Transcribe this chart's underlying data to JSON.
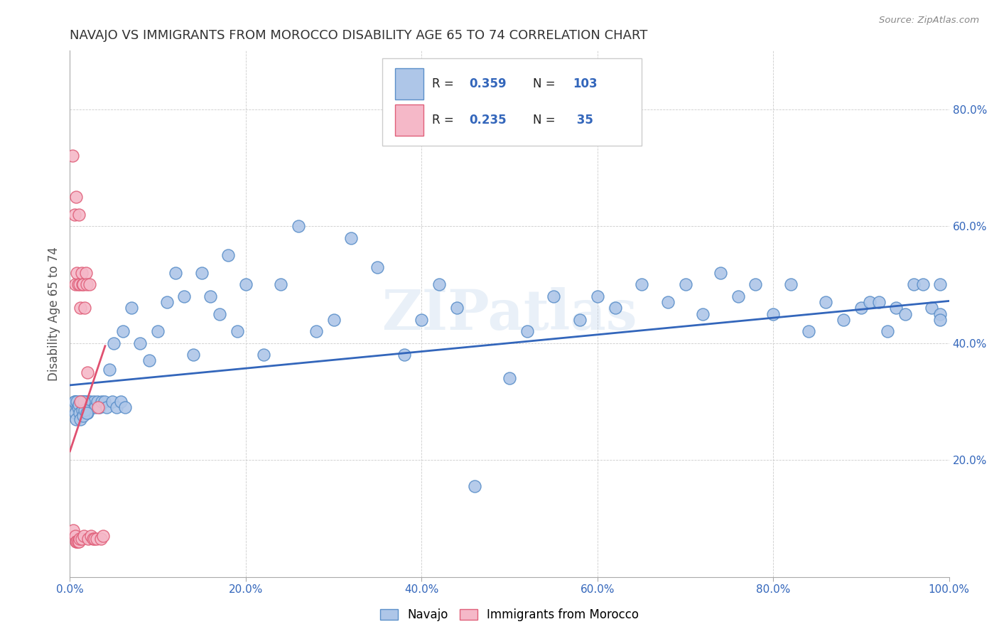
{
  "title": "NAVAJO VS IMMIGRANTS FROM MOROCCO DISABILITY AGE 65 TO 74 CORRELATION CHART",
  "source": "Source: ZipAtlas.com",
  "ylabel": "Disability Age 65 to 74",
  "xlim": [
    0.0,
    1.0
  ],
  "ylim": [
    0.0,
    0.9
  ],
  "xticks": [
    0.0,
    0.2,
    0.4,
    0.6,
    0.8,
    1.0
  ],
  "yticks": [
    0.2,
    0.4,
    0.6,
    0.8
  ],
  "xticklabels_bottom": [
    "0.0%",
    "",
    "",
    "",
    "",
    "100.0%"
  ],
  "xticklabels_inner": [
    "",
    "20.0%",
    "40.0%",
    "60.0%",
    "80.0%",
    ""
  ],
  "yticklabels": [
    "20.0%",
    "40.0%",
    "60.0%",
    "80.0%"
  ],
  "watermark": "ZIPatlas",
  "navajo_color": "#aec6e8",
  "morocco_color": "#f5b8c8",
  "navajo_edge": "#5b8fc9",
  "morocco_edge": "#e0607a",
  "line_navajo": "#3366bb",
  "line_morocco": "#e05070",
  "title_color": "#333333",
  "axis_color": "#555555",
  "tick_color_x_outer": "#333333",
  "tick_color_x_inner": "#333333",
  "tick_color_y": "#3366bb",
  "navajo_x": [
    0.005,
    0.007,
    0.008,
    0.009,
    0.01,
    0.011,
    0.012,
    0.013,
    0.014,
    0.015,
    0.016,
    0.017,
    0.018,
    0.019,
    0.02,
    0.021,
    0.022,
    0.023,
    0.025,
    0.027,
    0.029,
    0.031,
    0.034,
    0.036,
    0.039,
    0.042,
    0.048,
    0.053,
    0.058,
    0.063,
    0.045,
    0.05,
    0.06,
    0.07,
    0.08,
    0.09,
    0.1,
    0.11,
    0.12,
    0.13,
    0.14,
    0.15,
    0.16,
    0.17,
    0.18,
    0.19,
    0.2,
    0.22,
    0.24,
    0.26,
    0.28,
    0.3,
    0.32,
    0.35,
    0.38,
    0.4,
    0.42,
    0.44,
    0.46,
    0.5,
    0.52,
    0.55,
    0.58,
    0.6,
    0.62,
    0.65,
    0.68,
    0.7,
    0.72,
    0.74,
    0.76,
    0.78,
    0.8,
    0.82,
    0.84,
    0.86,
    0.88,
    0.9,
    0.91,
    0.92,
    0.93,
    0.94,
    0.95,
    0.96,
    0.97,
    0.98,
    0.99,
    0.99,
    0.99,
    0.005,
    0.006,
    0.007,
    0.008,
    0.009,
    0.01,
    0.011,
    0.012,
    0.013,
    0.014,
    0.015,
    0.016,
    0.017,
    0.019
  ],
  "navajo_y": [
    0.3,
    0.3,
    0.29,
    0.28,
    0.29,
    0.3,
    0.3,
    0.29,
    0.3,
    0.295,
    0.28,
    0.3,
    0.29,
    0.3,
    0.28,
    0.3,
    0.29,
    0.3,
    0.29,
    0.3,
    0.29,
    0.3,
    0.29,
    0.3,
    0.3,
    0.29,
    0.3,
    0.29,
    0.3,
    0.29,
    0.355,
    0.4,
    0.42,
    0.46,
    0.4,
    0.37,
    0.42,
    0.47,
    0.52,
    0.48,
    0.38,
    0.52,
    0.48,
    0.45,
    0.55,
    0.42,
    0.5,
    0.38,
    0.5,
    0.6,
    0.42,
    0.44,
    0.58,
    0.53,
    0.38,
    0.44,
    0.5,
    0.46,
    0.155,
    0.34,
    0.42,
    0.48,
    0.44,
    0.48,
    0.46,
    0.5,
    0.47,
    0.5,
    0.45,
    0.52,
    0.48,
    0.5,
    0.45,
    0.5,
    0.42,
    0.47,
    0.44,
    0.46,
    0.47,
    0.47,
    0.42,
    0.46,
    0.45,
    0.5,
    0.5,
    0.46,
    0.45,
    0.5,
    0.44,
    0.3,
    0.28,
    0.27,
    0.3,
    0.29,
    0.295,
    0.28,
    0.27,
    0.3,
    0.285,
    0.275,
    0.3,
    0.285,
    0.28
  ],
  "morocco_x": [
    0.003,
    0.004,
    0.005,
    0.006,
    0.006,
    0.007,
    0.007,
    0.008,
    0.008,
    0.009,
    0.009,
    0.01,
    0.01,
    0.011,
    0.011,
    0.012,
    0.012,
    0.013,
    0.013,
    0.014,
    0.015,
    0.016,
    0.017,
    0.018,
    0.019,
    0.02,
    0.021,
    0.022,
    0.024,
    0.026,
    0.028,
    0.03,
    0.032,
    0.035,
    0.038
  ],
  "morocco_y": [
    0.72,
    0.08,
    0.62,
    0.5,
    0.07,
    0.65,
    0.06,
    0.52,
    0.06,
    0.5,
    0.06,
    0.62,
    0.06,
    0.5,
    0.065,
    0.46,
    0.3,
    0.52,
    0.065,
    0.5,
    0.5,
    0.07,
    0.46,
    0.52,
    0.5,
    0.35,
    0.065,
    0.5,
    0.07,
    0.065,
    0.065,
    0.065,
    0.29,
    0.065,
    0.07
  ],
  "navajo_trendline_x": [
    0.0,
    1.0
  ],
  "navajo_trendline_y": [
    0.328,
    0.472
  ],
  "morocco_trendline_x": [
    0.0,
    0.04
  ],
  "morocco_trendline_y": [
    0.215,
    0.395
  ]
}
